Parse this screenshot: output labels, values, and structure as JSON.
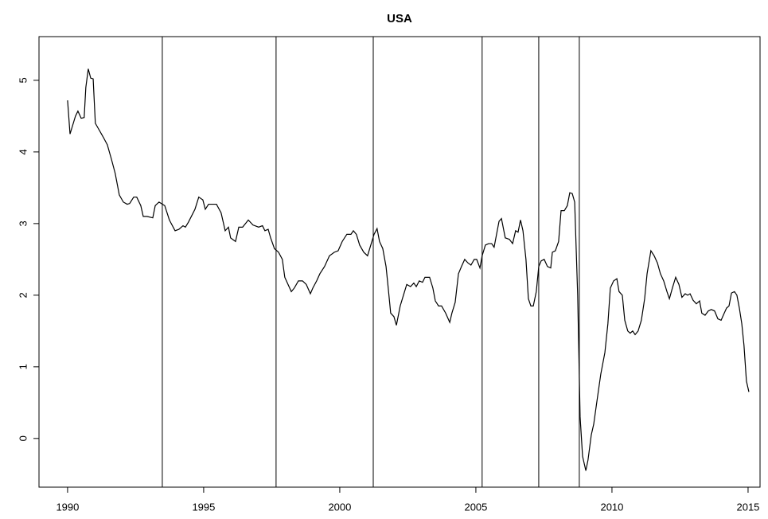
{
  "chart_data": {
    "type": "line",
    "title": "USA",
    "x": [
      1990.0,
      1990.09,
      1990.29,
      1990.38,
      1990.5,
      1990.61,
      1990.67,
      1990.76,
      1990.85,
      1990.94,
      1991.02,
      1991.17,
      1991.32,
      1991.46,
      1991.61,
      1991.75,
      1991.9,
      1992.05,
      1992.19,
      1992.28,
      1992.43,
      1992.54,
      1992.69,
      1992.78,
      1992.92,
      1993.13,
      1993.22,
      1993.36,
      1993.57,
      1993.74,
      1993.95,
      1994.09,
      1994.24,
      1994.33,
      1994.44,
      1994.68,
      1994.82,
      1994.97,
      1995.06,
      1995.18,
      1995.47,
      1995.64,
      1995.79,
      1995.91,
      1995.99,
      1996.17,
      1996.29,
      1996.43,
      1996.64,
      1996.81,
      1997.02,
      1997.16,
      1997.25,
      1997.37,
      1997.46,
      1997.6,
      1997.75,
      1997.89,
      1997.98,
      1998.1,
      1998.22,
      1998.33,
      1998.48,
      1998.63,
      1998.77,
      1998.92,
      1999.01,
      1999.15,
      1999.27,
      1999.44,
      1999.62,
      1999.8,
      1999.94,
      2000.09,
      2000.26,
      2000.41,
      2000.5,
      2000.61,
      2000.73,
      2000.88,
      2001.02,
      2001.14,
      2001.26,
      2001.37,
      2001.46,
      2001.58,
      2001.7,
      2001.78,
      2001.87,
      2001.99,
      2002.08,
      2002.22,
      2002.34,
      2002.46,
      2002.6,
      2002.72,
      2002.81,
      2002.92,
      2003.04,
      2003.13,
      2003.3,
      2003.42,
      2003.51,
      2003.63,
      2003.74,
      2003.89,
      2004.04,
      2004.12,
      2004.24,
      2004.36,
      2004.47,
      2004.59,
      2004.71,
      2004.82,
      2004.94,
      2005.03,
      2005.15,
      2005.23,
      2005.35,
      2005.47,
      2005.58,
      2005.67,
      2005.76,
      2005.85,
      2005.94,
      2006.08,
      2006.23,
      2006.35,
      2006.46,
      2006.55,
      2006.64,
      2006.73,
      2006.84,
      2006.93,
      2007.02,
      2007.11,
      2007.22,
      2007.31,
      2007.4,
      2007.51,
      2007.63,
      2007.75,
      2007.81,
      2007.92,
      2008.04,
      2008.13,
      2008.25,
      2008.36,
      2008.45,
      2008.54,
      2008.63,
      2008.74,
      2008.83,
      2008.92,
      2009.04,
      2009.12,
      2009.24,
      2009.33,
      2009.44,
      2009.59,
      2009.74,
      2009.85,
      2009.94,
      2010.06,
      2010.18,
      2010.26,
      2010.38,
      2010.47,
      2010.58,
      2010.67,
      2010.76,
      2010.85,
      2010.96,
      2011.08,
      2011.2,
      2011.29,
      2011.43,
      2011.55,
      2011.67,
      2011.78,
      2011.9,
      2012.02,
      2012.11,
      2012.22,
      2012.34,
      2012.46,
      2012.57,
      2012.69,
      2012.78,
      2012.87,
      2012.98,
      2013.1,
      2013.22,
      2013.3,
      2013.42,
      2013.54,
      2013.65,
      2013.77,
      2013.89,
      2014.01,
      2014.09,
      2014.21,
      2014.3,
      2014.39,
      2014.5,
      2014.59,
      2014.68,
      2014.77,
      2014.85,
      2014.94,
      2015.03
    ],
    "values": [
      4.72,
      4.25,
      4.5,
      4.57,
      4.47,
      4.48,
      4.9,
      5.16,
      5.03,
      5.02,
      4.4,
      4.3,
      4.2,
      4.1,
      3.9,
      3.7,
      3.4,
      3.3,
      3.27,
      3.28,
      3.37,
      3.37,
      3.25,
      3.1,
      3.1,
      3.08,
      3.25,
      3.3,
      3.25,
      3.05,
      2.9,
      2.92,
      2.97,
      2.95,
      3.02,
      3.2,
      3.37,
      3.33,
      3.2,
      3.27,
      3.27,
      3.15,
      2.9,
      2.95,
      2.8,
      2.75,
      2.95,
      2.95,
      3.05,
      2.98,
      2.95,
      2.97,
      2.9,
      2.92,
      2.8,
      2.65,
      2.6,
      2.5,
      2.25,
      2.15,
      2.05,
      2.1,
      2.2,
      2.2,
      2.15,
      2.02,
      2.1,
      2.2,
      2.3,
      2.4,
      2.55,
      2.6,
      2.62,
      2.75,
      2.85,
      2.85,
      2.9,
      2.85,
      2.7,
      2.6,
      2.55,
      2.7,
      2.85,
      2.93,
      2.75,
      2.65,
      2.4,
      2.1,
      1.75,
      1.7,
      1.58,
      1.85,
      2.0,
      2.15,
      2.12,
      2.17,
      2.12,
      2.2,
      2.18,
      2.25,
      2.25,
      2.1,
      1.92,
      1.85,
      1.85,
      1.75,
      1.62,
      1.75,
      1.9,
      2.3,
      2.4,
      2.5,
      2.45,
      2.42,
      2.5,
      2.5,
      2.38,
      2.55,
      2.7,
      2.72,
      2.72,
      2.67,
      2.85,
      3.03,
      3.07,
      2.8,
      2.78,
      2.72,
      2.9,
      2.88,
      3.05,
      2.9,
      2.5,
      1.95,
      1.85,
      1.85,
      2.05,
      2.4,
      2.48,
      2.5,
      2.4,
      2.38,
      2.6,
      2.62,
      2.75,
      3.18,
      3.18,
      3.25,
      3.43,
      3.42,
      3.3,
      2.0,
      0.3,
      -0.25,
      -0.45,
      -0.3,
      0.05,
      0.2,
      0.5,
      0.9,
      1.2,
      1.6,
      2.1,
      2.2,
      2.23,
      2.05,
      2.0,
      1.65,
      1.5,
      1.47,
      1.5,
      1.45,
      1.5,
      1.65,
      1.95,
      2.3,
      2.62,
      2.55,
      2.45,
      2.3,
      2.2,
      2.05,
      1.95,
      2.1,
      2.25,
      2.15,
      1.97,
      2.02,
      2.0,
      2.02,
      1.93,
      1.88,
      1.92,
      1.75,
      1.72,
      1.78,
      1.8,
      1.78,
      1.67,
      1.65,
      1.72,
      1.82,
      1.85,
      2.03,
      2.05,
      2.0,
      1.82,
      1.6,
      1.3,
      0.8,
      0.65
    ],
    "color": "#000000",
    "vlines": [
      1993.48,
      1997.66,
      2001.23,
      2005.23,
      2007.31,
      2008.8
    ],
    "xlim": [
      1988.95,
      2015.44
    ],
    "xticks": [
      1990,
      1995,
      2000,
      2005,
      2010,
      2015
    ],
    "ylim": [
      -0.68,
      5.61
    ],
    "yticks": [
      0,
      1,
      2,
      3,
      4,
      5
    ]
  }
}
